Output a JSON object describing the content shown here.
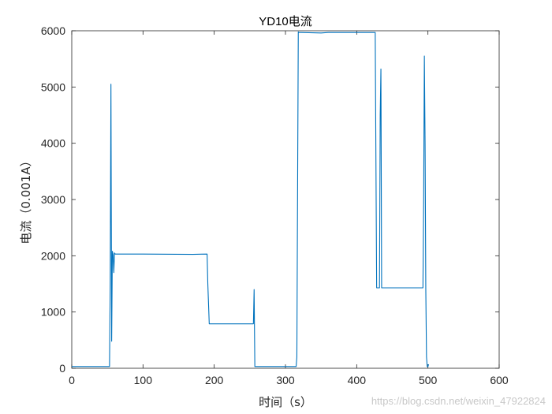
{
  "chart_data": {
    "type": "line",
    "title": "YD10电流",
    "xlabel": "时间（s）",
    "ylabel": "电流（0.001A）",
    "xlim": [
      0,
      600
    ],
    "ylim": [
      0,
      6000
    ],
    "xticks": [
      0,
      100,
      200,
      300,
      400,
      500,
      600
    ],
    "yticks": [
      0,
      1000,
      2000,
      3000,
      4000,
      5000,
      6000
    ],
    "grid": false,
    "line_color": "#0072BD",
    "series": [
      {
        "x": [
          0,
          53,
          54,
          55,
          56,
          57,
          58,
          59,
          60,
          61,
          100,
          170,
          190,
          191,
          193,
          200,
          250,
          255,
          256,
          257,
          258,
          259,
          260,
          300,
          315,
          316,
          318,
          319,
          350,
          360,
          370,
          400,
          425,
          426,
          428,
          432,
          433,
          434,
          435,
          436,
          440,
          490,
          493,
          494,
          495,
          496,
          497,
          498,
          499,
          500,
          501
        ],
        "y": [
          30,
          30,
          1500,
          5050,
          480,
          2080,
          2020,
          1700,
          2050,
          2030,
          2030,
          2025,
          2030,
          1500,
          790,
          790,
          790,
          790,
          1400,
          30,
          30,
          30,
          30,
          30,
          30,
          200,
          5980,
          5970,
          5960,
          5970,
          5970,
          5970,
          5970,
          5970,
          1430,
          1430,
          4500,
          5320,
          1430,
          1430,
          1430,
          1430,
          1430,
          3000,
          5550,
          4000,
          1400,
          200,
          30,
          30,
          70
        ]
      }
    ]
  },
  "watermark": "https://blog.csdn.net/weixin_47922824"
}
